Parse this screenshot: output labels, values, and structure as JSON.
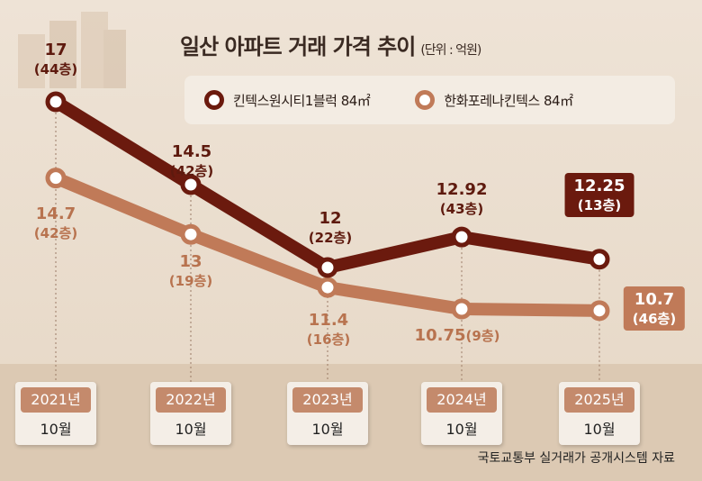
{
  "chart_data": {
    "type": "line",
    "title": "일산 아파트 거래 가격 추이",
    "unit": "(단위 : 억원)",
    "categories": [
      {
        "year": "2021년",
        "month": "10월"
      },
      {
        "year": "2022년",
        "month": "10월"
      },
      {
        "year": "2023년",
        "month": "10월"
      },
      {
        "year": "2024년",
        "month": "10월"
      },
      {
        "year": "2025년",
        "month": "10월"
      }
    ],
    "series": [
      {
        "name": "킨텍스원시티1블럭 84㎡",
        "color": "#6b1a0e",
        "values": [
          17,
          14.5,
          12,
          12.92,
          12.25
        ],
        "labels": [
          "17",
          "14.5",
          "12",
          "12.92",
          "12.25"
        ],
        "floors": [
          "(44층)",
          "(42층)",
          "(22층)",
          "(43층)",
          "(13층)"
        ]
      },
      {
        "name": "한화포레나킨텍스 84㎡",
        "color": "#c07a58",
        "values": [
          14.7,
          13,
          11.4,
          10.75,
          10.7
        ],
        "labels": [
          "14.7",
          "13",
          "11.4",
          "10.75",
          "10.7"
        ],
        "floors": [
          "(42층)",
          "(19층)",
          "(16층)",
          "(9층)",
          "(46층)"
        ]
      }
    ],
    "ylim": [
      10,
      17.5
    ],
    "source": "국토교통부 실거래가 공개시스템 자료"
  }
}
